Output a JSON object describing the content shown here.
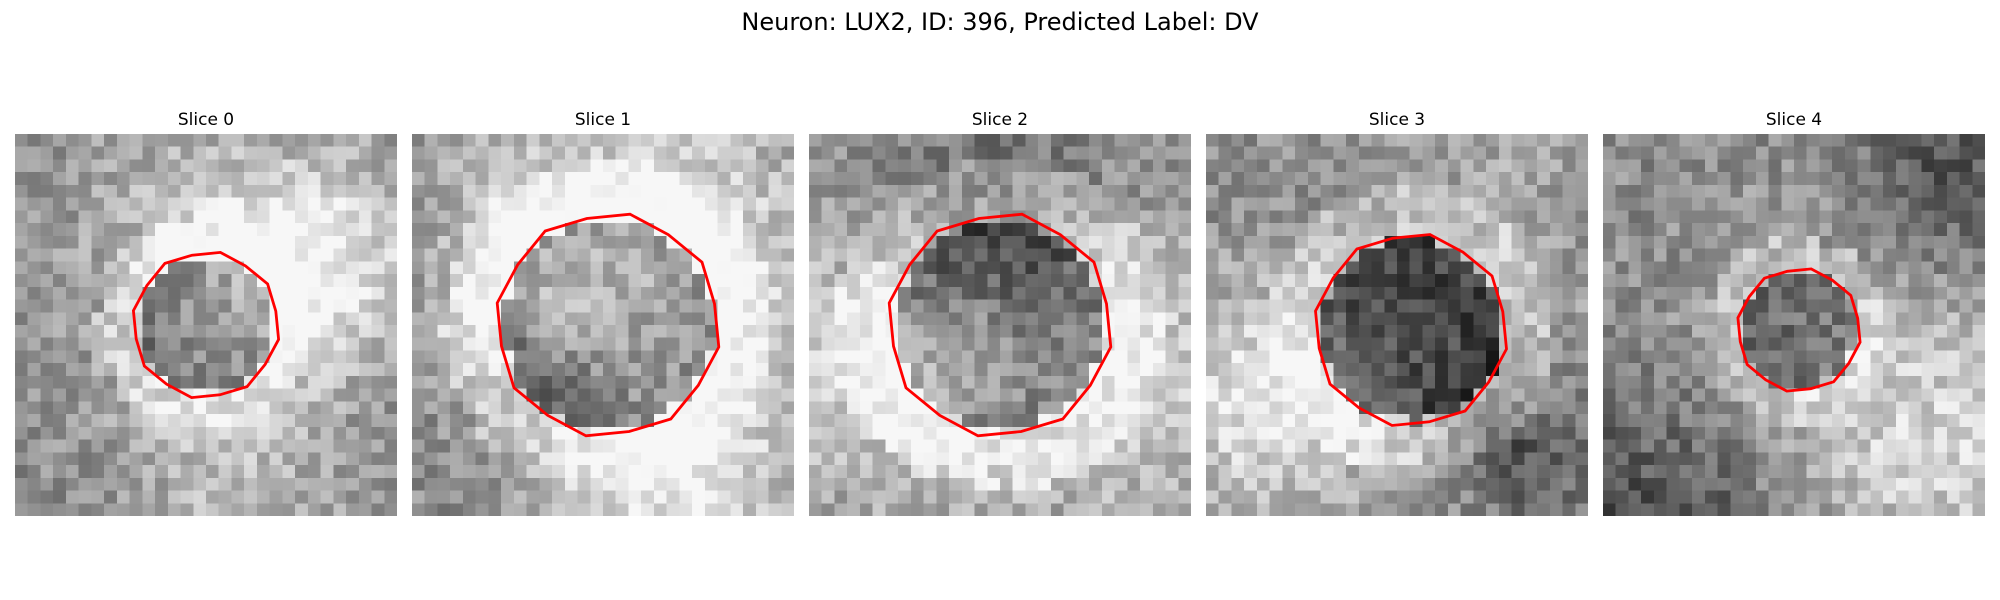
{
  "figure": {
    "suptitle": "Neuron: LUX2, ID: 396, Predicted Label: DV"
  },
  "panels": [
    {
      "title": "Slice 0",
      "roi_radius": 0.19,
      "darkness": 0.3
    },
    {
      "title": "Slice 1",
      "roi_radius": 0.29,
      "darkness": 0.4
    },
    {
      "title": "Slice 2",
      "roi_radius": 0.29,
      "darkness": 0.3
    },
    {
      "title": "Slice 3",
      "roi_radius": 0.25,
      "darkness": 0.4
    },
    {
      "title": "Slice 4",
      "roi_radius": 0.16,
      "darkness": 0.25
    }
  ],
  "colors": {
    "roi_outline": "#ff0000",
    "background": "#ffffff"
  },
  "colormap": "gray"
}
